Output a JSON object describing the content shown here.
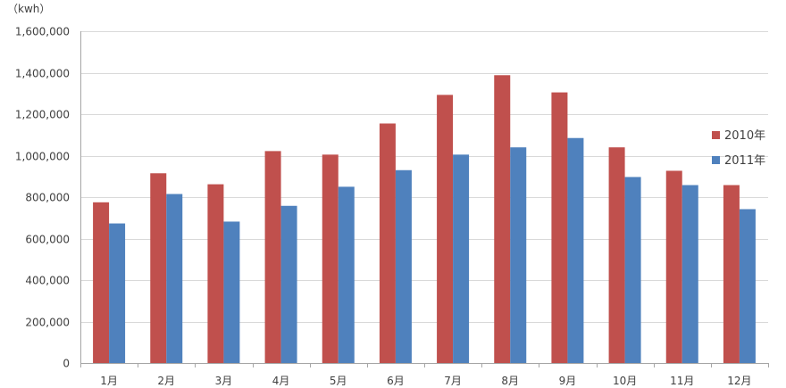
{
  "chart_data": {
    "type": "bar",
    "unit_label": "（kwh）",
    "categories": [
      "1月",
      "2月",
      "3月",
      "4月",
      "5月",
      "6月",
      "7月",
      "8月",
      "9月",
      "10月",
      "11月",
      "12月"
    ],
    "series": [
      {
        "name": "2010年",
        "color": "#c0504d",
        "values": [
          775000,
          915000,
          862000,
          1022000,
          1005000,
          1155000,
          1293000,
          1388000,
          1305000,
          1040000,
          927000,
          858000
        ]
      },
      {
        "name": "2011年",
        "color": "#4f81bd",
        "values": [
          673000,
          815000,
          682000,
          758000,
          850000,
          930000,
          1005000,
          1040000,
          1085000,
          897000,
          858000,
          742000
        ]
      }
    ],
    "ylim": [
      0,
      1600000
    ],
    "yticks": [
      0,
      200000,
      400000,
      600000,
      800000,
      1000000,
      1200000,
      1400000,
      1600000
    ],
    "ytick_labels": [
      "0",
      "200,000",
      "400,000",
      "600,000",
      "800,000",
      "1,000,000",
      "1,200,000",
      "1,400,000",
      "1,600,000"
    ],
    "grid": true,
    "legend_position": "right"
  }
}
